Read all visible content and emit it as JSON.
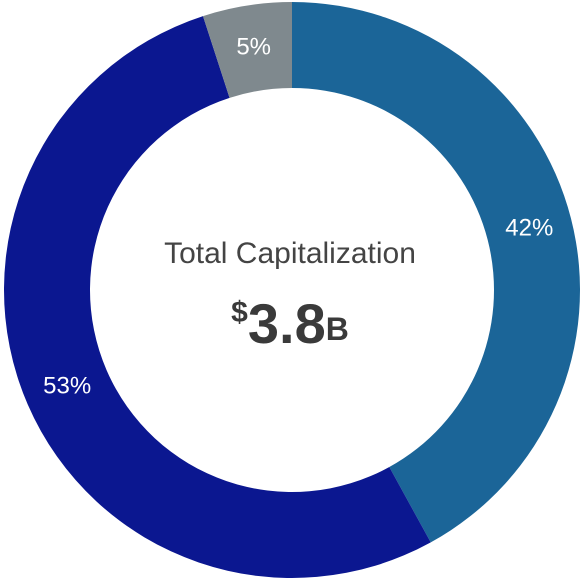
{
  "chart_data": {
    "type": "donut",
    "values": [
      42,
      53,
      5
    ],
    "value_labels": [
      "42%",
      "53%",
      "5%"
    ],
    "colors": [
      "#1b6598",
      "#0b1790",
      "#7f898e"
    ],
    "center_label": "Total Capitalization",
    "center_value": [
      "$",
      "3.8",
      "B"
    ]
  }
}
